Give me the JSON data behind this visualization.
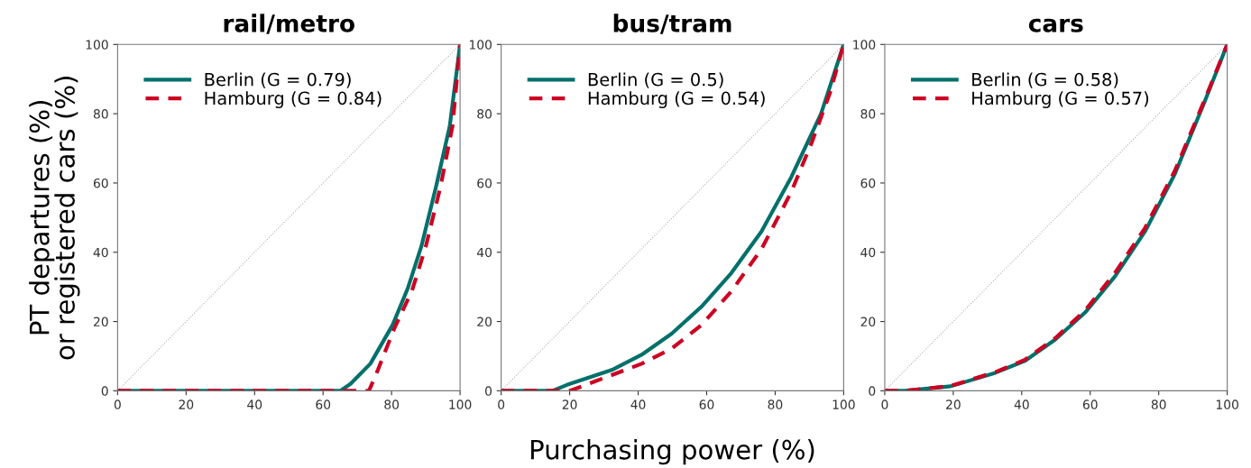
{
  "chart_data": [
    {
      "type": "line",
      "title": "rail/metro",
      "ylabel": "PT departures (%)\nor registered cars (%)",
      "xlim": [
        0,
        100
      ],
      "ylim": [
        0,
        100
      ],
      "xticks": [
        0,
        20,
        40,
        60,
        80,
        100
      ],
      "yticks": [
        0,
        20,
        40,
        60,
        80,
        100
      ],
      "grid": false,
      "legend": "top left",
      "marker": "none",
      "series": [
        {
          "name": null,
          "color": "#b0b0b0",
          "line_style": "dotted",
          "x": [
            0,
            100
          ],
          "values": [
            0,
            100
          ]
        },
        {
          "name": "Berlin (G = 0.79)",
          "color": "#00706b",
          "line_style": "solid",
          "x": [
            0,
            65,
            68,
            73.8,
            80.3,
            84.7,
            88.7,
            93,
            97,
            100
          ],
          "values": [
            0,
            0,
            2,
            7.8,
            19,
            29.5,
            41.7,
            59,
            76.5,
            100
          ]
        },
        {
          "name": "Hamburg (G = 0.84)",
          "color": "#cc0022",
          "line_style": "dashed",
          "x": [
            0,
            73.4,
            76,
            80.8,
            86,
            90,
            94.3,
            97.8,
            100
          ],
          "values": [
            0,
            0,
            6,
            18,
            29,
            41.7,
            59,
            76.5,
            100
          ]
        }
      ]
    },
    {
      "type": "line",
      "title": "bus/tram",
      "xlabel": "Purchasing power (%)",
      "xlim": [
        0,
        100
      ],
      "ylim": [
        0,
        100
      ],
      "xticks": [
        0,
        20,
        40,
        60,
        80,
        100
      ],
      "yticks": [
        0,
        20,
        40,
        60,
        80,
        100
      ],
      "grid": false,
      "legend": "top left",
      "marker": "none",
      "series": [
        {
          "name": null,
          "color": "#b0b0b0",
          "line_style": "dotted",
          "x": [
            0,
            100
          ],
          "values": [
            0,
            100
          ]
        },
        {
          "name": "Berlin (G = 0.5)",
          "color": "#00706b",
          "line_style": "solid",
          "x": [
            0,
            15,
            19.2,
            32.3,
            41,
            49.8,
            58.5,
            67.2,
            76,
            84.7,
            93.4,
            100
          ],
          "values": [
            0,
            0,
            1.7,
            6,
            10.4,
            16.5,
            24.3,
            34,
            46,
            61.7,
            80,
            100
          ]
        },
        {
          "name": "Hamburg (G = 0.54)",
          "color": "#cc0022",
          "line_style": "dashed",
          "x": [
            0,
            20,
            23.6,
            41,
            49.8,
            58.5,
            67.2,
            76,
            84.7,
            90.8,
            96,
            100
          ],
          "values": [
            0,
            0,
            1.3,
            7.8,
            12.2,
            19,
            28.7,
            40.9,
            57.4,
            72,
            86,
            100
          ]
        }
      ]
    },
    {
      "type": "line",
      "title": "cars",
      "xlim": [
        0,
        100
      ],
      "ylim": [
        0,
        100
      ],
      "xticks": [
        0,
        20,
        40,
        60,
        80,
        100
      ],
      "yticks": [
        0,
        20,
        40,
        60,
        80,
        100
      ],
      "grid": false,
      "legend": "top left",
      "marker": "none",
      "series": [
        {
          "name": null,
          "color": "#b0b0b0",
          "line_style": "dotted",
          "x": [
            0,
            100
          ],
          "values": [
            0,
            100
          ]
        },
        {
          "name": "Berlin (G = 0.58)",
          "color": "#00706b",
          "line_style": "solid",
          "x": [
            0,
            6,
            19.2,
            32.3,
            41,
            49.8,
            58.5,
            67.2,
            76,
            84.7,
            93.4,
            100
          ],
          "values": [
            0,
            0,
            1.3,
            5.2,
            8.7,
            14.8,
            22.6,
            33,
            46,
            62.6,
            83.5,
            100
          ]
        },
        {
          "name": "Hamburg (G = 0.57)",
          "color": "#cc0022",
          "line_style": "dashed",
          "x": [
            0,
            6,
            19.2,
            32.3,
            41,
            49.8,
            58.5,
            67.2,
            76,
            84.7,
            93.4,
            100
          ],
          "values": [
            0,
            0,
            1.4,
            5.4,
            9,
            15.2,
            23.2,
            34,
            47,
            63.5,
            84,
            100
          ]
        }
      ]
    }
  ]
}
